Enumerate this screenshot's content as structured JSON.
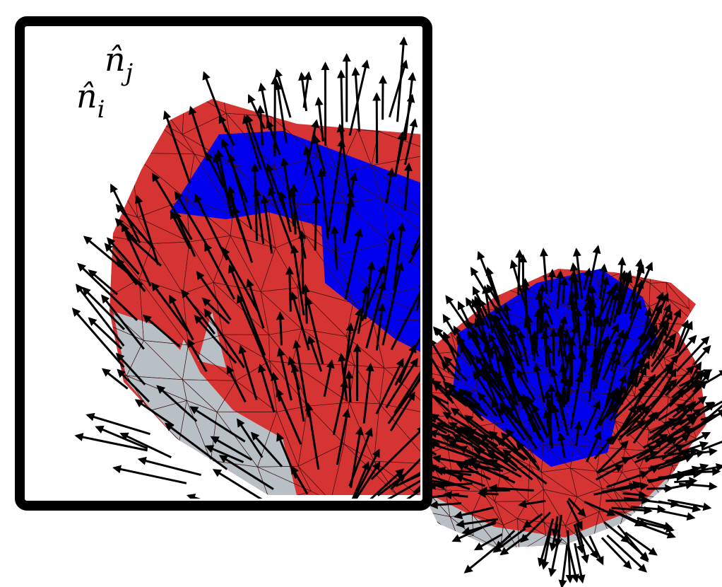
{
  "labels": [
    {
      "symbol": "n̂",
      "subscript": "j"
    },
    {
      "symbol": "n̂",
      "subscript": "i"
    }
  ]
}
